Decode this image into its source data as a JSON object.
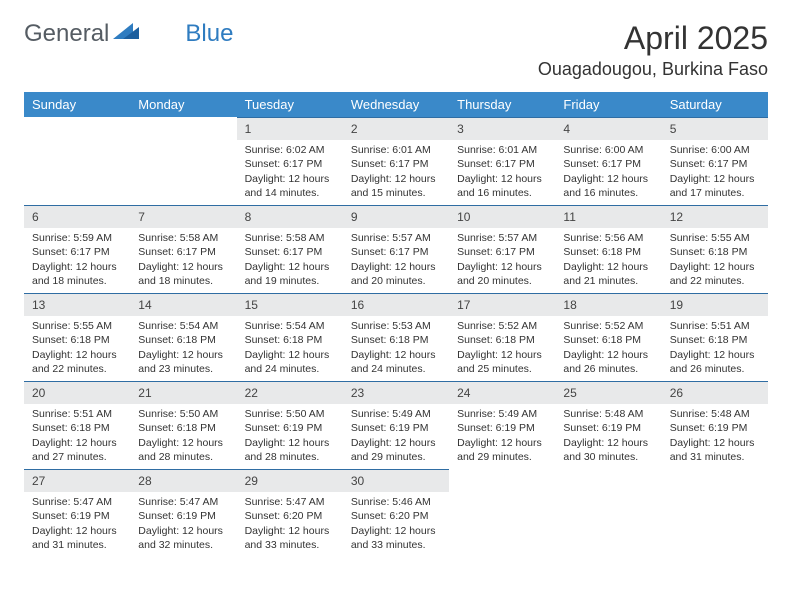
{
  "brand": {
    "part1": "General",
    "part2": "Blue"
  },
  "title": "April 2025",
  "location": "Ouagadougou, Burkina Faso",
  "colors": {
    "header_bg": "#3a89c9",
    "header_text": "#ffffff",
    "daynum_bg": "#e8e9ea",
    "daynum_border": "#2f6da3",
    "brand_gray": "#555c63",
    "brand_blue": "#2f7cc0"
  },
  "weekdays": [
    "Sunday",
    "Monday",
    "Tuesday",
    "Wednesday",
    "Thursday",
    "Friday",
    "Saturday"
  ],
  "weeks": [
    [
      null,
      null,
      {
        "n": "1",
        "sr": "6:02 AM",
        "ss": "6:17 PM",
        "dl": "12 hours and 14 minutes."
      },
      {
        "n": "2",
        "sr": "6:01 AM",
        "ss": "6:17 PM",
        "dl": "12 hours and 15 minutes."
      },
      {
        "n": "3",
        "sr": "6:01 AM",
        "ss": "6:17 PM",
        "dl": "12 hours and 16 minutes."
      },
      {
        "n": "4",
        "sr": "6:00 AM",
        "ss": "6:17 PM",
        "dl": "12 hours and 16 minutes."
      },
      {
        "n": "5",
        "sr": "6:00 AM",
        "ss": "6:17 PM",
        "dl": "12 hours and 17 minutes."
      }
    ],
    [
      {
        "n": "6",
        "sr": "5:59 AM",
        "ss": "6:17 PM",
        "dl": "12 hours and 18 minutes."
      },
      {
        "n": "7",
        "sr": "5:58 AM",
        "ss": "6:17 PM",
        "dl": "12 hours and 18 minutes."
      },
      {
        "n": "8",
        "sr": "5:58 AM",
        "ss": "6:17 PM",
        "dl": "12 hours and 19 minutes."
      },
      {
        "n": "9",
        "sr": "5:57 AM",
        "ss": "6:17 PM",
        "dl": "12 hours and 20 minutes."
      },
      {
        "n": "10",
        "sr": "5:57 AM",
        "ss": "6:17 PM",
        "dl": "12 hours and 20 minutes."
      },
      {
        "n": "11",
        "sr": "5:56 AM",
        "ss": "6:18 PM",
        "dl": "12 hours and 21 minutes."
      },
      {
        "n": "12",
        "sr": "5:55 AM",
        "ss": "6:18 PM",
        "dl": "12 hours and 22 minutes."
      }
    ],
    [
      {
        "n": "13",
        "sr": "5:55 AM",
        "ss": "6:18 PM",
        "dl": "12 hours and 22 minutes."
      },
      {
        "n": "14",
        "sr": "5:54 AM",
        "ss": "6:18 PM",
        "dl": "12 hours and 23 minutes."
      },
      {
        "n": "15",
        "sr": "5:54 AM",
        "ss": "6:18 PM",
        "dl": "12 hours and 24 minutes."
      },
      {
        "n": "16",
        "sr": "5:53 AM",
        "ss": "6:18 PM",
        "dl": "12 hours and 24 minutes."
      },
      {
        "n": "17",
        "sr": "5:52 AM",
        "ss": "6:18 PM",
        "dl": "12 hours and 25 minutes."
      },
      {
        "n": "18",
        "sr": "5:52 AM",
        "ss": "6:18 PM",
        "dl": "12 hours and 26 minutes."
      },
      {
        "n": "19",
        "sr": "5:51 AM",
        "ss": "6:18 PM",
        "dl": "12 hours and 26 minutes."
      }
    ],
    [
      {
        "n": "20",
        "sr": "5:51 AM",
        "ss": "6:18 PM",
        "dl": "12 hours and 27 minutes."
      },
      {
        "n": "21",
        "sr": "5:50 AM",
        "ss": "6:18 PM",
        "dl": "12 hours and 28 minutes."
      },
      {
        "n": "22",
        "sr": "5:50 AM",
        "ss": "6:19 PM",
        "dl": "12 hours and 28 minutes."
      },
      {
        "n": "23",
        "sr": "5:49 AM",
        "ss": "6:19 PM",
        "dl": "12 hours and 29 minutes."
      },
      {
        "n": "24",
        "sr": "5:49 AM",
        "ss": "6:19 PM",
        "dl": "12 hours and 29 minutes."
      },
      {
        "n": "25",
        "sr": "5:48 AM",
        "ss": "6:19 PM",
        "dl": "12 hours and 30 minutes."
      },
      {
        "n": "26",
        "sr": "5:48 AM",
        "ss": "6:19 PM",
        "dl": "12 hours and 31 minutes."
      }
    ],
    [
      {
        "n": "27",
        "sr": "5:47 AM",
        "ss": "6:19 PM",
        "dl": "12 hours and 31 minutes."
      },
      {
        "n": "28",
        "sr": "5:47 AM",
        "ss": "6:19 PM",
        "dl": "12 hours and 32 minutes."
      },
      {
        "n": "29",
        "sr": "5:47 AM",
        "ss": "6:20 PM",
        "dl": "12 hours and 33 minutes."
      },
      {
        "n": "30",
        "sr": "5:46 AM",
        "ss": "6:20 PM",
        "dl": "12 hours and 33 minutes."
      },
      null,
      null,
      null
    ]
  ],
  "labels": {
    "sunrise": "Sunrise:",
    "sunset": "Sunset:",
    "daylight": "Daylight:"
  }
}
